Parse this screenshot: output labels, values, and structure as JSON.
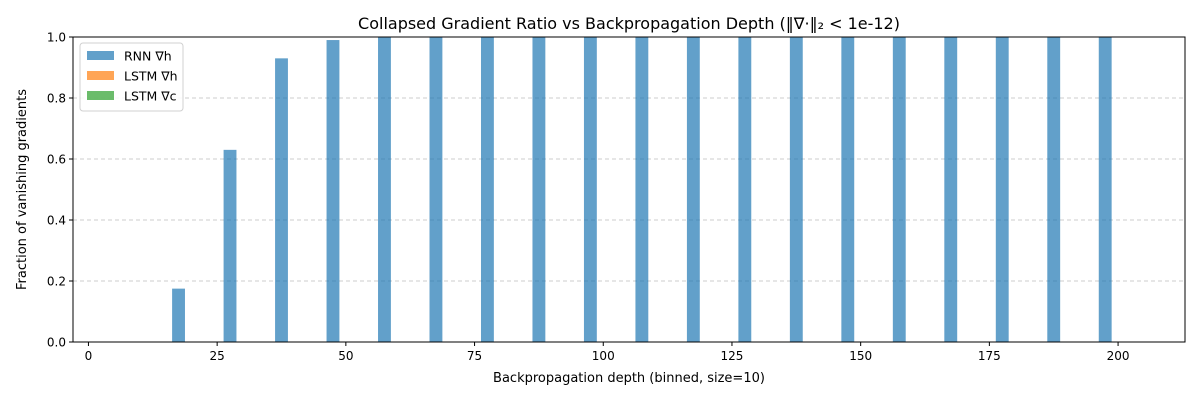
{
  "chart_data": {
    "type": "bar",
    "title": "Collapsed Gradient Ratio vs Backpropagation Depth (‖∇·‖₂ < 1e-12)",
    "xlabel": "Backpropagation depth (binned, size=10)",
    "ylabel": "Fraction of vanishing gradients",
    "xlim": [
      -3,
      213
    ],
    "ylim": [
      0,
      1.0
    ],
    "bar_width": 2.5,
    "xticks": [
      0,
      25,
      50,
      75,
      100,
      125,
      150,
      175,
      200
    ],
    "yticks": [
      0.0,
      0.2,
      0.4,
      0.6,
      0.8,
      1.0
    ],
    "xtick_labels": [
      "0",
      "25",
      "50",
      "75",
      "100",
      "125",
      "150",
      "175",
      "200"
    ],
    "ytick_labels": [
      "0.0",
      "0.2",
      "0.4",
      "0.6",
      "0.8",
      "1.0"
    ],
    "grid": "y-dashed",
    "legend_position": "top-left",
    "x": [
      2.5,
      12.5,
      22.5,
      32.5,
      42.5,
      52.5,
      62.5,
      72.5,
      82.5,
      92.5,
      102.5,
      112.5,
      122.5,
      132.5,
      142.5,
      152.5,
      162.5,
      172.5,
      182.5,
      192.5,
      202.5
    ],
    "series": [
      {
        "name": "RNN ∇h",
        "color": "#1f77b4",
        "offset": 5,
        "values": [
          0.0,
          0.175,
          0.63,
          0.93,
          0.99,
          1.0,
          1.0,
          1.0,
          1.0,
          1.0,
          1.0,
          1.0,
          1.0,
          1.0,
          1.0,
          1.0,
          1.0,
          1.0,
          1.0,
          1.0,
          0.0
        ]
      },
      {
        "name": "LSTM ∇h",
        "color": "#ff7f0e",
        "offset": 7.5,
        "values": [
          0,
          0,
          0,
          0,
          0,
          0,
          0,
          0,
          0,
          0,
          0,
          0,
          0,
          0,
          0,
          0,
          0,
          0,
          0,
          0,
          0
        ]
      },
      {
        "name": "LSTM ∇c",
        "color": "#2ca02c",
        "offset": 10,
        "values": [
          0,
          0,
          0,
          0,
          0,
          0,
          0,
          0,
          0,
          0,
          0,
          0,
          0,
          0,
          0,
          0,
          0,
          0,
          0,
          0,
          0
        ]
      }
    ]
  }
}
